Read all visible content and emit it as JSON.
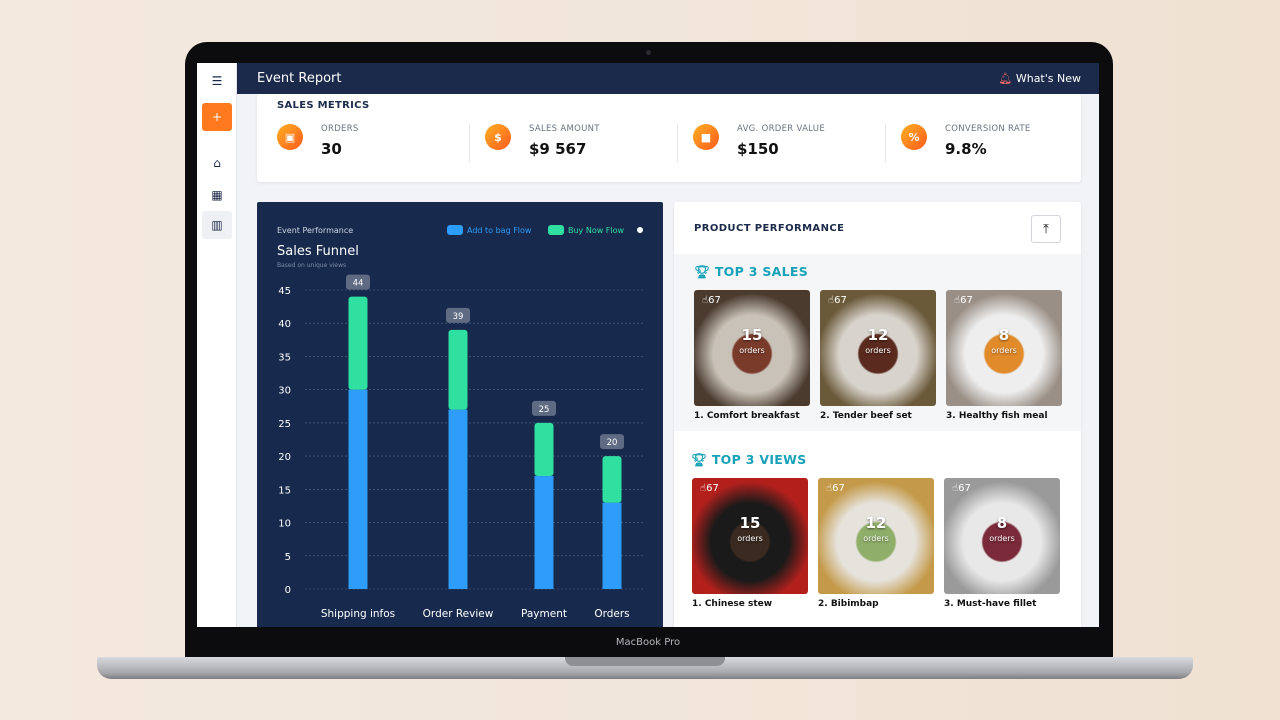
{
  "laptop_label": "MacBook Pro",
  "header": {
    "title": "Event Report",
    "whats_new": "What's New"
  },
  "sidebar": {
    "items": [
      {
        "icon": "menu-icon"
      },
      {
        "icon": "plus-icon",
        "label": "+"
      },
      {
        "icon": "home-icon"
      },
      {
        "icon": "calendar-icon"
      },
      {
        "icon": "chart-icon"
      }
    ]
  },
  "metrics": {
    "title": "SALES METRICS",
    "items": [
      {
        "label": "ORDERS",
        "value": "30",
        "icon": "box-icon",
        "glyph": "▣"
      },
      {
        "label": "SALES AMOUNT",
        "value": "$9 567",
        "icon": "dollar-icon",
        "glyph": "$"
      },
      {
        "label": "AVG. ORDER VALUE",
        "value": "$150",
        "icon": "bag-icon",
        "glyph": "■"
      },
      {
        "label": "CONVERSION RATE",
        "value": "9.8%",
        "icon": "percent-icon",
        "glyph": "%"
      }
    ],
    "accent": "#ff7a1f"
  },
  "chart_data": {
    "type": "bar",
    "stacked": true,
    "supertitle": "Event Performance",
    "title": "Sales Funnel",
    "subtitle": "Based on unique views",
    "categories": [
      "Shipping infos",
      "Order Review",
      "Payment",
      "Orders"
    ],
    "series": [
      {
        "name": "Add to bag Flow",
        "color": "#2d9cfb",
        "values": [
          30,
          27,
          17,
          13
        ]
      },
      {
        "name": "Buy Now Flow",
        "color": "#2fe0a0",
        "values": [
          14,
          12,
          8,
          7
        ]
      }
    ],
    "totals": [
      "44",
      "39",
      "25",
      "20"
    ],
    "ylim": [
      0,
      45
    ],
    "yticks": [
      "0",
      "5",
      "10",
      "15",
      "20",
      "25",
      "30",
      "35",
      "40",
      "45"
    ],
    "grid": true,
    "legend": "top-right"
  },
  "product": {
    "title": "PRODUCT PERFORMANCE",
    "top_sales": {
      "title": "TOP 3 SALES",
      "items": [
        {
          "name": "1. Comfort breakfast",
          "views": "67",
          "orders": "15",
          "orders_label": "orders"
        },
        {
          "name": "2. Tender beef set",
          "views": "67",
          "orders": "12",
          "orders_label": "orders"
        },
        {
          "name": "3. Healthy fish meal",
          "views": "67",
          "orders": "8",
          "orders_label": "orders"
        }
      ]
    },
    "top_views": {
      "title": "TOP 3 VIEWS",
      "items": [
        {
          "name": "1. Chinese stew",
          "views": "67",
          "orders": "15",
          "orders_label": "orders"
        },
        {
          "name": "2. Bibimbap",
          "views": "67",
          "orders": "12",
          "orders_label": "orders"
        },
        {
          "name": "3. Must-have fillet",
          "views": "67",
          "orders": "8",
          "orders_label": "orders"
        }
      ]
    }
  }
}
